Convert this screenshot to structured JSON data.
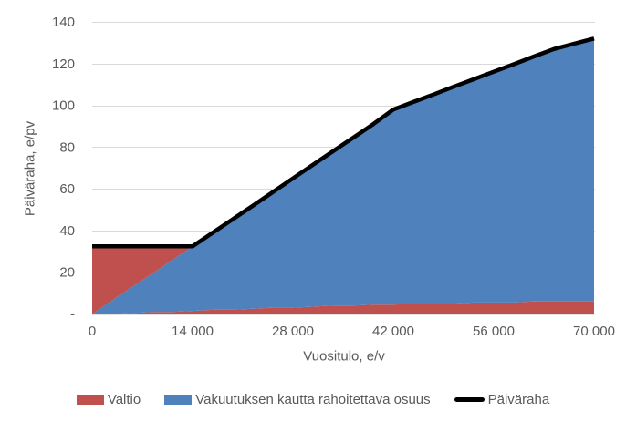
{
  "colors": {
    "valtio": "#C0504D",
    "vakuutus": "#4F81BD",
    "paivaraha": "#000000",
    "gridline": "#D9D9D9",
    "axis_line": "#C6C6C6",
    "axis_text": "#595959"
  },
  "y_axis": {
    "title": "Päiväraha, e/pv",
    "ticks": [
      {
        "value": 140,
        "label": "140"
      },
      {
        "value": 120,
        "label": "120"
      },
      {
        "value": 100,
        "label": "100"
      },
      {
        "value": 80,
        "label": "80"
      },
      {
        "value": 60,
        "label": "60"
      },
      {
        "value": 40,
        "label": "40"
      },
      {
        "value": 20,
        "label": "20"
      },
      {
        "value": 0,
        "label": "-"
      }
    ]
  },
  "x_axis": {
    "title": "Vuositulo, e/v",
    "ticks": [
      {
        "value": 0,
        "label": "0"
      },
      {
        "value": 14000,
        "label": "14 000"
      },
      {
        "value": 28000,
        "label": "28 000"
      },
      {
        "value": 42000,
        "label": "42 000"
      },
      {
        "value": 56000,
        "label": "56 000"
      },
      {
        "value": 70000,
        "label": "70 000"
      }
    ]
  },
  "legend": {
    "items": [
      {
        "label": "Valtio",
        "type": "area",
        "color": "#C0504D"
      },
      {
        "label": "Vakuutuksen kautta rahoitettava osuus",
        "type": "area",
        "color": "#4F81BD"
      },
      {
        "label": "Päiväraha",
        "type": "line",
        "color": "#000000"
      }
    ]
  },
  "chart_data": {
    "type": "area",
    "stacked": true,
    "title": "",
    "xlabel": "Vuositulo, e/v",
    "ylabel": "Päiväraha, e/pv",
    "xlim": [
      0,
      70000
    ],
    "ylim": [
      0,
      140
    ],
    "grid": "horizontal",
    "legend_position": "bottom",
    "x": [
      0,
      2800,
      5600,
      8400,
      11200,
      14000,
      16800,
      19600,
      22400,
      25200,
      28000,
      30800,
      33600,
      36400,
      39200,
      42000,
      44800,
      47600,
      50400,
      53200,
      56000,
      58800,
      61600,
      64400,
      67200,
      70000
    ],
    "series": [
      {
        "name": "Valtio (alempi kerros)",
        "color": "#C0504D",
        "role": "stack-layer-1",
        "values": [
          0,
          0,
          0.5,
          1.0,
          1.0,
          1.5,
          2.0,
          2.0,
          2.5,
          3.0,
          3.0,
          3.5,
          4.0,
          4.0,
          4.5,
          4.5,
          5.0,
          5.0,
          5.0,
          5.5,
          5.5,
          5.5,
          6.0,
          6.0,
          6.0,
          6.0
        ]
      },
      {
        "name": "Vakuutuksen kautta rahoitettava osuus",
        "color": "#4F81BD",
        "role": "stack-layer-2",
        "values": [
          0,
          6.5,
          12.5,
          18.4,
          24.9,
          30.9,
          36.9,
          43.4,
          49.4,
          55.4,
          62.0,
          68.0,
          74.0,
          80.5,
          86.5,
          93.5,
          96.6,
          100.2,
          103.9,
          107.0,
          110.6,
          114.2,
          117.4,
          121.0,
          123.5,
          126.0
        ]
      },
      {
        "name": "Valtio (ylempi kerros)",
        "color": "#C0504D",
        "role": "stack-layer-3",
        "values": [
          32.4,
          25.9,
          19.4,
          13.0,
          6.5,
          0,
          0,
          0,
          0,
          0,
          0,
          0,
          0,
          0,
          0,
          0,
          0,
          0,
          0,
          0,
          0,
          0,
          0,
          0,
          0,
          0
        ]
      },
      {
        "name": "Päiväraha",
        "color": "#000000",
        "role": "line",
        "values": [
          32.4,
          32.4,
          32.4,
          32.4,
          32.4,
          32.4,
          38.9,
          45.4,
          51.9,
          58.4,
          65.0,
          71.5,
          78.0,
          84.5,
          91.0,
          98.0,
          101.6,
          105.2,
          108.9,
          112.5,
          116.1,
          119.7,
          123.4,
          127.0,
          129.5,
          132.0
        ]
      }
    ]
  }
}
